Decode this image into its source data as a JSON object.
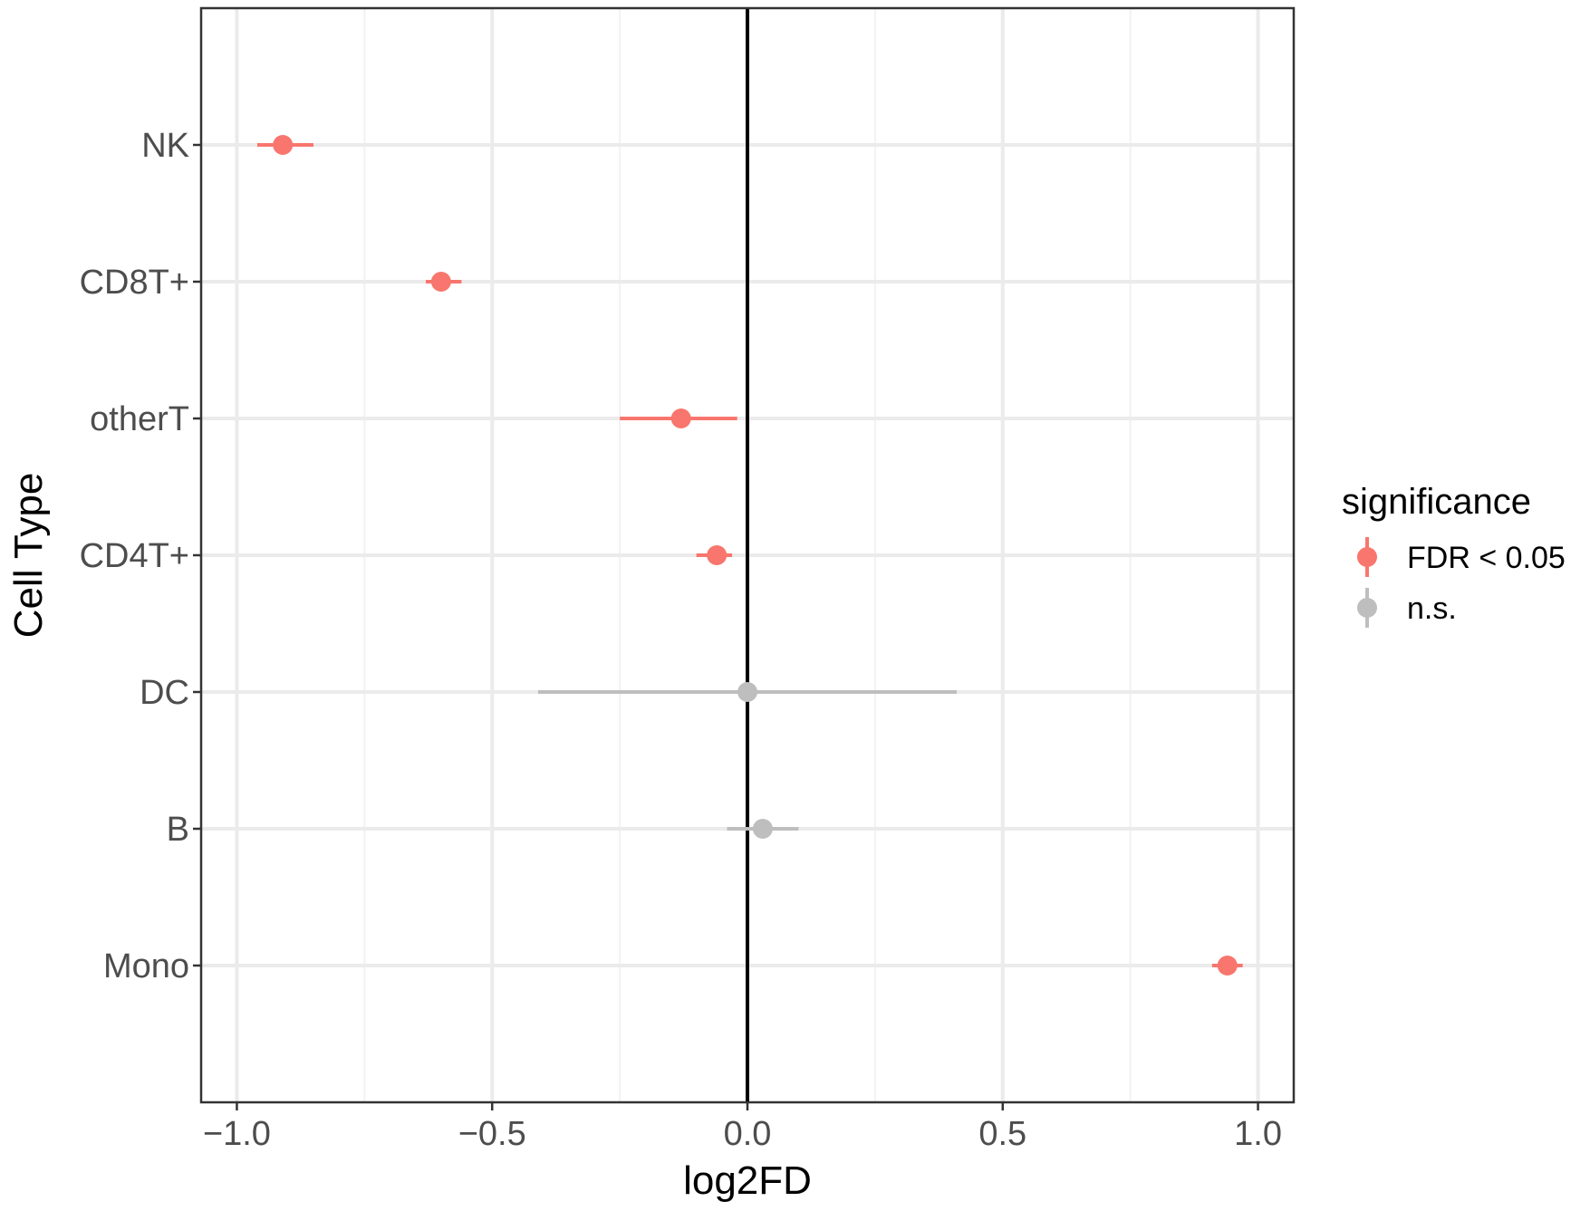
{
  "chart_data": {
    "type": "scatter",
    "subtype": "dot-and-whisker",
    "xlabel": "log2FD",
    "ylabel": "Cell Type",
    "xlim": [
      -1.07,
      1.07
    ],
    "xticks": [
      -1.0,
      -0.5,
      0.0,
      0.5,
      1.0
    ],
    "xtick_labels": [
      "−1.0",
      "−0.5",
      "0.0",
      "0.5",
      "1.0"
    ],
    "categories": [
      "NK",
      "CD8T+",
      "otherT",
      "CD4T+",
      "DC",
      "B",
      "Mono"
    ],
    "points": [
      {
        "category": "NK",
        "x": -0.91,
        "lo": -0.96,
        "hi": -0.85,
        "significance": "FDR < 0.05"
      },
      {
        "category": "CD8T+",
        "x": -0.6,
        "lo": -0.63,
        "hi": -0.56,
        "significance": "FDR < 0.05"
      },
      {
        "category": "otherT",
        "x": -0.13,
        "lo": -0.25,
        "hi": -0.02,
        "significance": "FDR < 0.05"
      },
      {
        "category": "CD4T+",
        "x": -0.06,
        "lo": -0.1,
        "hi": -0.03,
        "significance": "FDR < 0.05"
      },
      {
        "category": "DC",
        "x": 0.0,
        "lo": -0.41,
        "hi": 0.41,
        "significance": "n.s."
      },
      {
        "category": "B",
        "x": 0.03,
        "lo": -0.04,
        "hi": 0.1,
        "significance": "n.s."
      },
      {
        "category": "Mono",
        "x": 0.94,
        "lo": 0.91,
        "hi": 0.97,
        "significance": "FDR < 0.05"
      }
    ],
    "reference_line_x": 0,
    "grid": true,
    "legend": {
      "title": "significance",
      "position": "right",
      "entries": [
        {
          "label": "FDR < 0.05",
          "color": "#F8766D"
        },
        {
          "label": "n.s.",
          "color": "#BEBEBE"
        }
      ]
    }
  }
}
